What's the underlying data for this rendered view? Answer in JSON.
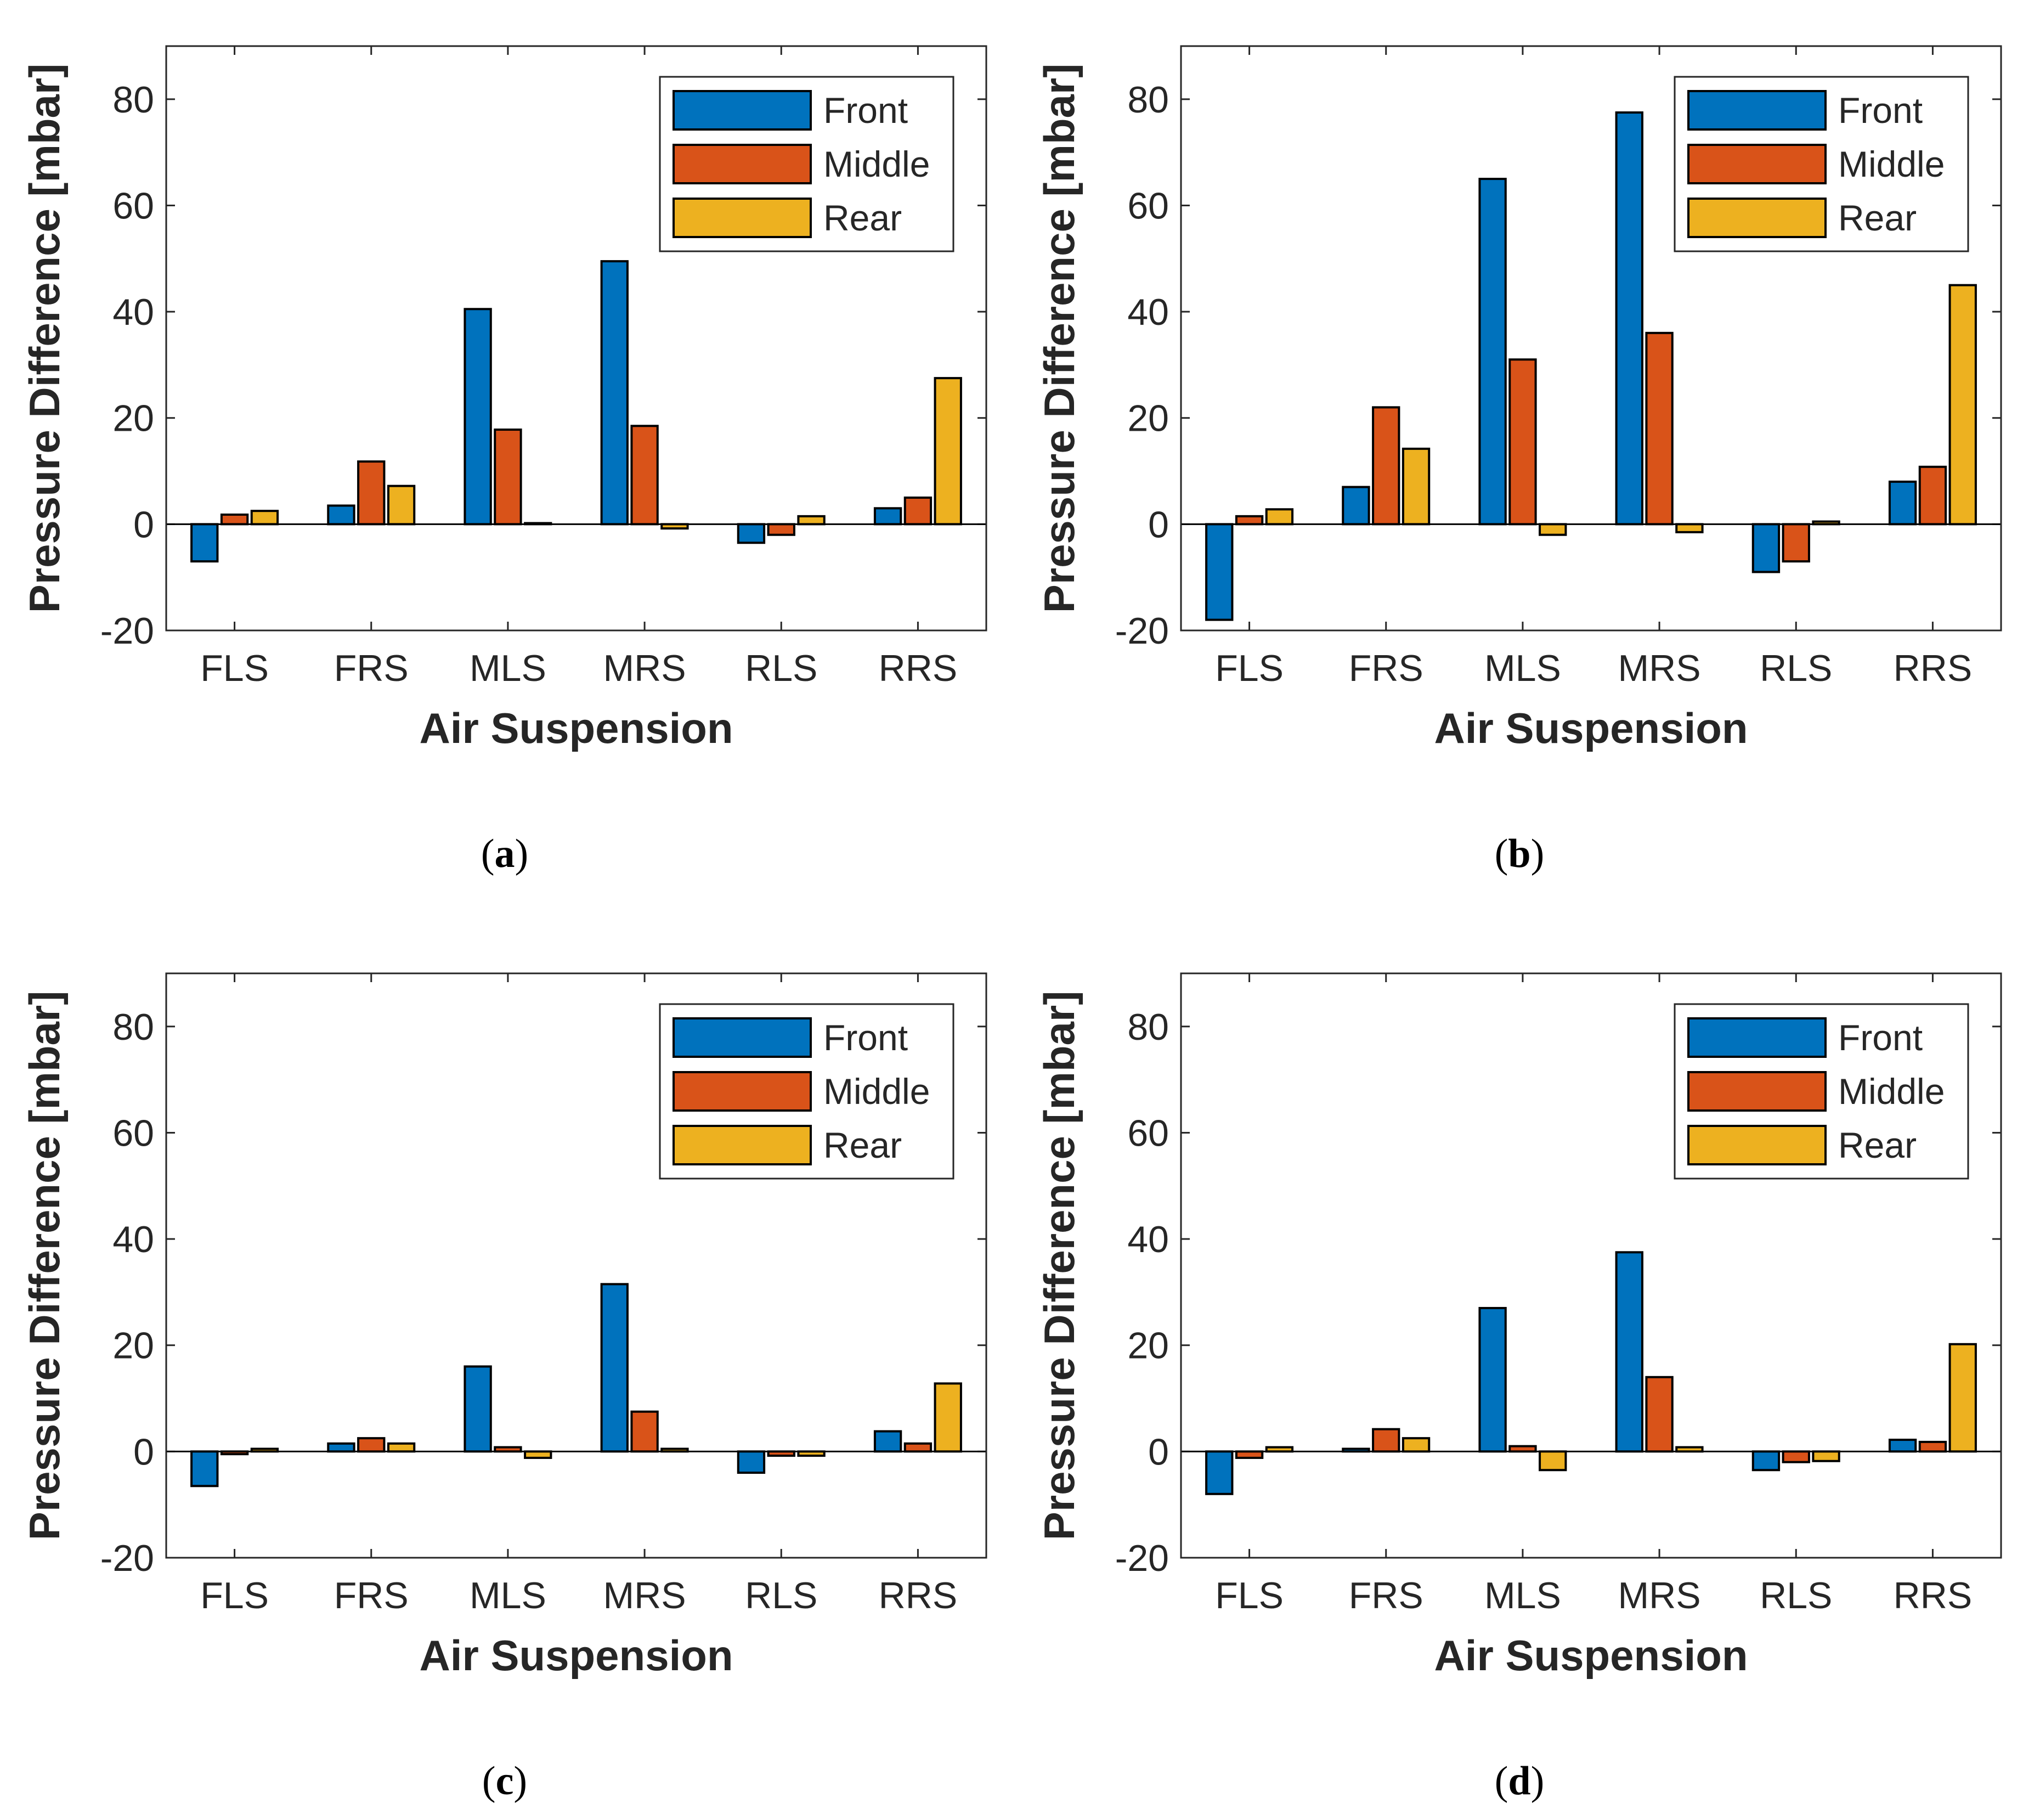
{
  "figure": {
    "panels_order": [
      "a",
      "b",
      "c",
      "d"
    ]
  },
  "chart_data": [
    {
      "id": "a",
      "caption_letter": "a",
      "type": "bar",
      "title": "",
      "xlabel": "Air Suspension",
      "ylabel": "Pressure Difference [mbar]",
      "categories": [
        "FLS",
        "FRS",
        "MLS",
        "MRS",
        "RLS",
        "RRS"
      ],
      "ylim": [
        -20,
        90
      ],
      "yticks": [
        -20,
        0,
        20,
        40,
        60,
        80
      ],
      "legend_position": "top-right",
      "grid": false,
      "series": [
        {
          "name": "Front",
          "color": "#0072BD",
          "values": [
            -7,
            3.5,
            40.5,
            49.5,
            -3.5,
            3
          ]
        },
        {
          "name": "Middle",
          "color": "#D95319",
          "values": [
            1.8,
            11.8,
            17.8,
            18.5,
            -2,
            5
          ]
        },
        {
          "name": "Rear",
          "color": "#EDB120",
          "values": [
            2.5,
            7.2,
            0.2,
            -0.8,
            1.5,
            27.5
          ]
        }
      ]
    },
    {
      "id": "b",
      "caption_letter": "b",
      "type": "bar",
      "title": "",
      "xlabel": "Air Suspension",
      "ylabel": "Pressure Difference [mbar]",
      "categories": [
        "FLS",
        "FRS",
        "MLS",
        "MRS",
        "RLS",
        "RRS"
      ],
      "ylim": [
        -20,
        90
      ],
      "yticks": [
        -20,
        0,
        20,
        40,
        60,
        80
      ],
      "legend_position": "top-right",
      "grid": false,
      "series": [
        {
          "name": "Front",
          "color": "#0072BD",
          "values": [
            -18,
            7,
            65,
            77.5,
            -9,
            8
          ]
        },
        {
          "name": "Middle",
          "color": "#D95319",
          "values": [
            1.5,
            22,
            31,
            36,
            -7,
            10.8
          ]
        },
        {
          "name": "Rear",
          "color": "#EDB120",
          "values": [
            2.8,
            14.2,
            -2,
            -1.5,
            0.5,
            45
          ]
        }
      ]
    },
    {
      "id": "c",
      "caption_letter": "c",
      "type": "bar",
      "title": "",
      "xlabel": "Air Suspension",
      "ylabel": "Pressure Difference [mbar]",
      "categories": [
        "FLS",
        "FRS",
        "MLS",
        "MRS",
        "RLS",
        "RRS"
      ],
      "ylim": [
        -20,
        90
      ],
      "yticks": [
        -20,
        0,
        20,
        40,
        60,
        80
      ],
      "legend_position": "top-right",
      "grid": false,
      "series": [
        {
          "name": "Front",
          "color": "#0072BD",
          "values": [
            -6.5,
            1.5,
            16,
            31.5,
            -4,
            3.8
          ]
        },
        {
          "name": "Middle",
          "color": "#D95319",
          "values": [
            -0.5,
            2.5,
            0.8,
            7.5,
            -0.8,
            1.5
          ]
        },
        {
          "name": "Rear",
          "color": "#EDB120",
          "values": [
            0.5,
            1.5,
            -1.2,
            0.5,
            -0.8,
            12.8
          ]
        }
      ]
    },
    {
      "id": "d",
      "caption_letter": "d",
      "type": "bar",
      "title": "",
      "xlabel": "Air Suspension",
      "ylabel": "Pressure Difference [mbar]",
      "categories": [
        "FLS",
        "FRS",
        "MLS",
        "MRS",
        "RLS",
        "RRS"
      ],
      "ylim": [
        -20,
        90
      ],
      "yticks": [
        -20,
        0,
        20,
        40,
        60,
        80
      ],
      "legend_position": "top-right",
      "grid": false,
      "series": [
        {
          "name": "Front",
          "color": "#0072BD",
          "values": [
            -8,
            0.5,
            27,
            37.5,
            -3.5,
            2.2
          ]
        },
        {
          "name": "Middle",
          "color": "#D95319",
          "values": [
            -1.2,
            4.2,
            1,
            14,
            -2,
            1.8
          ]
        },
        {
          "name": "Rear",
          "color": "#EDB120",
          "values": [
            0.8,
            2.5,
            -3.5,
            0.8,
            -1.8,
            20.2
          ]
        }
      ]
    }
  ]
}
